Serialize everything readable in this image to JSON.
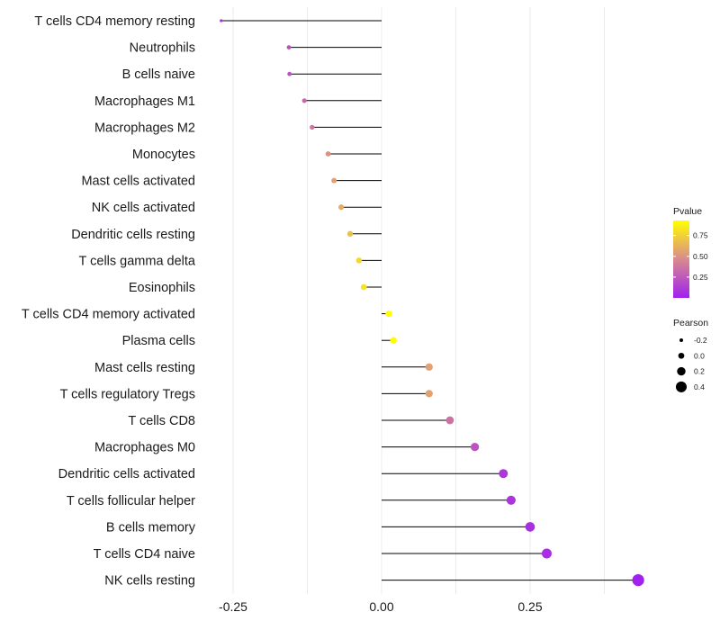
{
  "chart_data": {
    "type": "lollipop",
    "title": "",
    "xlabel": "",
    "ylabel": "",
    "xlim": [
      -0.27,
      0.43
    ],
    "xticks": [
      -0.25,
      0.0,
      0.25
    ],
    "xtick_labels": [
      "-0.25",
      "0.00",
      "0.25"
    ],
    "grid": true,
    "categories": [
      "T cells CD4 memory resting",
      "Neutrophils",
      "B cells naive",
      "Macrophages M1",
      "Macrophages M2",
      "Monocytes",
      "Mast cells activated",
      "NK cells activated",
      "Dendritic cells resting",
      "T cells gamma delta",
      "Eosinophils",
      "T cells CD4 memory activated",
      "Plasma cells",
      "Mast cells resting",
      "T cells regulatory  Tregs",
      "T cells CD8",
      "Macrophages M0",
      "Dendritic cells activated",
      "T cells follicular helper",
      "B cells memory",
      "T cells CD4 naive",
      "NK cells resting"
    ],
    "pearson": [
      -0.27,
      -0.156,
      -0.155,
      -0.13,
      -0.117,
      -0.09,
      -0.08,
      -0.068,
      -0.053,
      -0.038,
      -0.03,
      0.012,
      0.02,
      0.08,
      0.08,
      0.115,
      0.157,
      0.205,
      0.218,
      0.25,
      0.278,
      0.432
    ],
    "pvalue": [
      0.05,
      0.22,
      0.23,
      0.31,
      0.38,
      0.5,
      0.55,
      0.6,
      0.68,
      0.78,
      0.82,
      0.95,
      0.93,
      0.56,
      0.56,
      0.36,
      0.23,
      0.1,
      0.09,
      0.07,
      0.06,
      0.01
    ],
    "legend_color": {
      "title": "Pvalue",
      "tick_values": [
        0.75,
        0.5,
        0.25
      ],
      "tick_labels": [
        "0.75",
        "0.50",
        "0.25"
      ],
      "range": [
        0.0,
        0.93
      ],
      "low_color": "#a020f0",
      "mid_color": "#d9898e",
      "high_color": "#ffff00"
    },
    "legend_size": {
      "title": "Pearson",
      "values": [
        -0.2,
        0.0,
        0.2,
        0.4
      ],
      "labels": [
        "-0.2",
        "0.0",
        "0.2",
        "0.4"
      ]
    },
    "legend_position": "right"
  }
}
